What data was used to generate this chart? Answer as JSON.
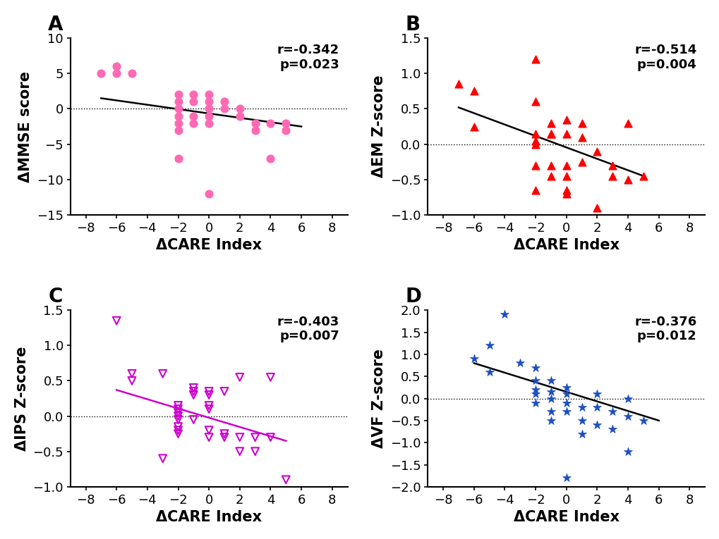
{
  "panels": [
    {
      "label": "A",
      "xlabel": "ΔCARE Index",
      "ylabel": "ΔMMSE score",
      "r_text": "r=-0.342",
      "p_text": "p=0.023",
      "color": "#FF69B4",
      "marker": "o",
      "open_marker": false,
      "ylim": [
        -15,
        10
      ],
      "yticks": [
        -15,
        -10,
        -5,
        0,
        5,
        10
      ],
      "xlim": [
        -9,
        9
      ],
      "xticks": [
        -8,
        -6,
        -4,
        -2,
        0,
        2,
        4,
        6,
        8
      ],
      "line_color": "black",
      "x": [
        -7,
        -6,
        -6,
        -5,
        -2,
        -2,
        -2,
        -2,
        -2,
        -2,
        -2,
        -1,
        -1,
        -1,
        -1,
        0,
        0,
        0,
        0,
        0,
        0,
        1,
        1,
        2,
        2,
        3,
        3,
        4,
        4,
        5,
        5
      ],
      "y": [
        5,
        5,
        6,
        5,
        2,
        1,
        0,
        -1,
        -2,
        -3,
        -7,
        2,
        1,
        -1,
        -2,
        2,
        1,
        0,
        -1,
        -2,
        -12,
        1,
        0,
        0,
        -1,
        -2,
        -3,
        -2,
        -7,
        -2,
        -3
      ],
      "reg_x0": -7,
      "reg_x1": 6,
      "reg_y0": 1.5,
      "reg_y1": -2.5
    },
    {
      "label": "B",
      "xlabel": "ΔCARE Index",
      "ylabel": "ΔEM Z-score",
      "r_text": "r=-0.514",
      "p_text": "p=0.004",
      "color": "#FF0000",
      "marker": "^",
      "open_marker": false,
      "ylim": [
        -1.0,
        1.5
      ],
      "yticks": [
        -1.0,
        -0.5,
        0.0,
        0.5,
        1.0,
        1.5
      ],
      "xlim": [
        -9,
        9
      ],
      "xticks": [
        -8,
        -6,
        -4,
        -2,
        0,
        2,
        4,
        6,
        8
      ],
      "line_color": "black",
      "x": [
        -7,
        -6,
        -6,
        -2,
        -2,
        -2,
        -2,
        -2,
        -2,
        -2,
        -1,
        -1,
        -1,
        -1,
        -1,
        0,
        0,
        0,
        0,
        0,
        0,
        1,
        1,
        1,
        2,
        2,
        3,
        3,
        4,
        4,
        5
      ],
      "y": [
        0.85,
        0.75,
        0.25,
        1.2,
        0.6,
        0.15,
        0.05,
        0.0,
        -0.3,
        -0.65,
        0.3,
        0.15,
        0.15,
        -0.3,
        -0.45,
        0.35,
        0.15,
        -0.3,
        -0.45,
        -0.65,
        -0.7,
        0.3,
        0.1,
        -0.25,
        -0.1,
        -0.9,
        -0.3,
        -0.45,
        0.3,
        -0.5,
        -0.45
      ],
      "reg_x0": -7,
      "reg_x1": 5,
      "reg_y0": 0.52,
      "reg_y1": -0.45
    },
    {
      "label": "C",
      "xlabel": "ΔCARE Index",
      "ylabel": "ΔIPS Z-score",
      "r_text": "r=-0.403",
      "p_text": "p=0.007",
      "color": "#CC00CC",
      "marker": "v",
      "open_marker": true,
      "ylim": [
        -1.0,
        1.5
      ],
      "yticks": [
        -1.0,
        -0.5,
        0.0,
        0.5,
        1.0,
        1.5
      ],
      "xlim": [
        -9,
        9
      ],
      "xticks": [
        -8,
        -6,
        -4,
        -2,
        0,
        2,
        4,
        6,
        8
      ],
      "line_color": "#CC00CC",
      "x": [
        -6,
        -5,
        -5,
        -3,
        -3,
        -2,
        -2,
        -2,
        -2,
        -2,
        -2,
        -2,
        -2,
        -1,
        -1,
        -1,
        -1,
        0,
        0,
        0,
        0,
        0,
        0,
        1,
        1,
        1,
        2,
        2,
        2,
        3,
        3,
        4,
        4,
        5
      ],
      "y": [
        1.35,
        0.5,
        0.6,
        0.6,
        -0.6,
        0.15,
        0.1,
        0.05,
        0.0,
        -0.05,
        -0.15,
        -0.2,
        -0.25,
        0.4,
        0.35,
        0.3,
        -0.05,
        0.35,
        0.3,
        0.15,
        0.1,
        -0.2,
        -0.3,
        0.35,
        -0.25,
        -0.3,
        0.55,
        -0.3,
        -0.5,
        -0.3,
        -0.5,
        0.55,
        -0.3,
        -0.9
      ],
      "reg_x0": -6,
      "reg_x1": 5,
      "reg_y0": 0.37,
      "reg_y1": -0.35
    },
    {
      "label": "D",
      "xlabel": "ΔCARE Index",
      "ylabel": "ΔVF Z-score",
      "r_text": "r=-0.376",
      "p_text": "p=0.012",
      "color": "#1E4FC0",
      "marker": "*",
      "open_marker": false,
      "ylim": [
        -2.0,
        2.0
      ],
      "yticks": [
        -2.0,
        -1.5,
        -1.0,
        -0.5,
        0.0,
        0.5,
        1.0,
        1.5,
        2.0
      ],
      "xlim": [
        -9,
        9
      ],
      "xticks": [
        -8,
        -6,
        -4,
        -2,
        0,
        2,
        4,
        6,
        8
      ],
      "line_color": "black",
      "x": [
        -6,
        -5,
        -5,
        -4,
        -3,
        -2,
        -2,
        -2,
        -2,
        -2,
        -1,
        -1,
        -1,
        -1,
        -1,
        0,
        0,
        0,
        0,
        0,
        1,
        1,
        1,
        2,
        2,
        2,
        3,
        3,
        4,
        4,
        4,
        5
      ],
      "y": [
        0.9,
        1.2,
        0.6,
        1.9,
        0.8,
        0.7,
        0.4,
        0.2,
        0.1,
        -0.1,
        0.4,
        0.15,
        0.0,
        -0.3,
        -0.5,
        0.25,
        0.1,
        -0.1,
        -0.3,
        -1.8,
        -0.2,
        -0.5,
        -0.8,
        0.1,
        -0.2,
        -0.6,
        -0.3,
        -0.7,
        0.0,
        -0.4,
        -1.2,
        -0.5
      ],
      "reg_x0": -6,
      "reg_x1": 6,
      "reg_y0": 0.8,
      "reg_y1": -0.5
    }
  ],
  "background_color": "#FFFFFF",
  "label_fontsize": 20,
  "tick_fontsize": 13,
  "axis_label_fontsize": 15,
  "annotation_fontsize": 13,
  "marker_size": 60,
  "star_marker_size": 80
}
